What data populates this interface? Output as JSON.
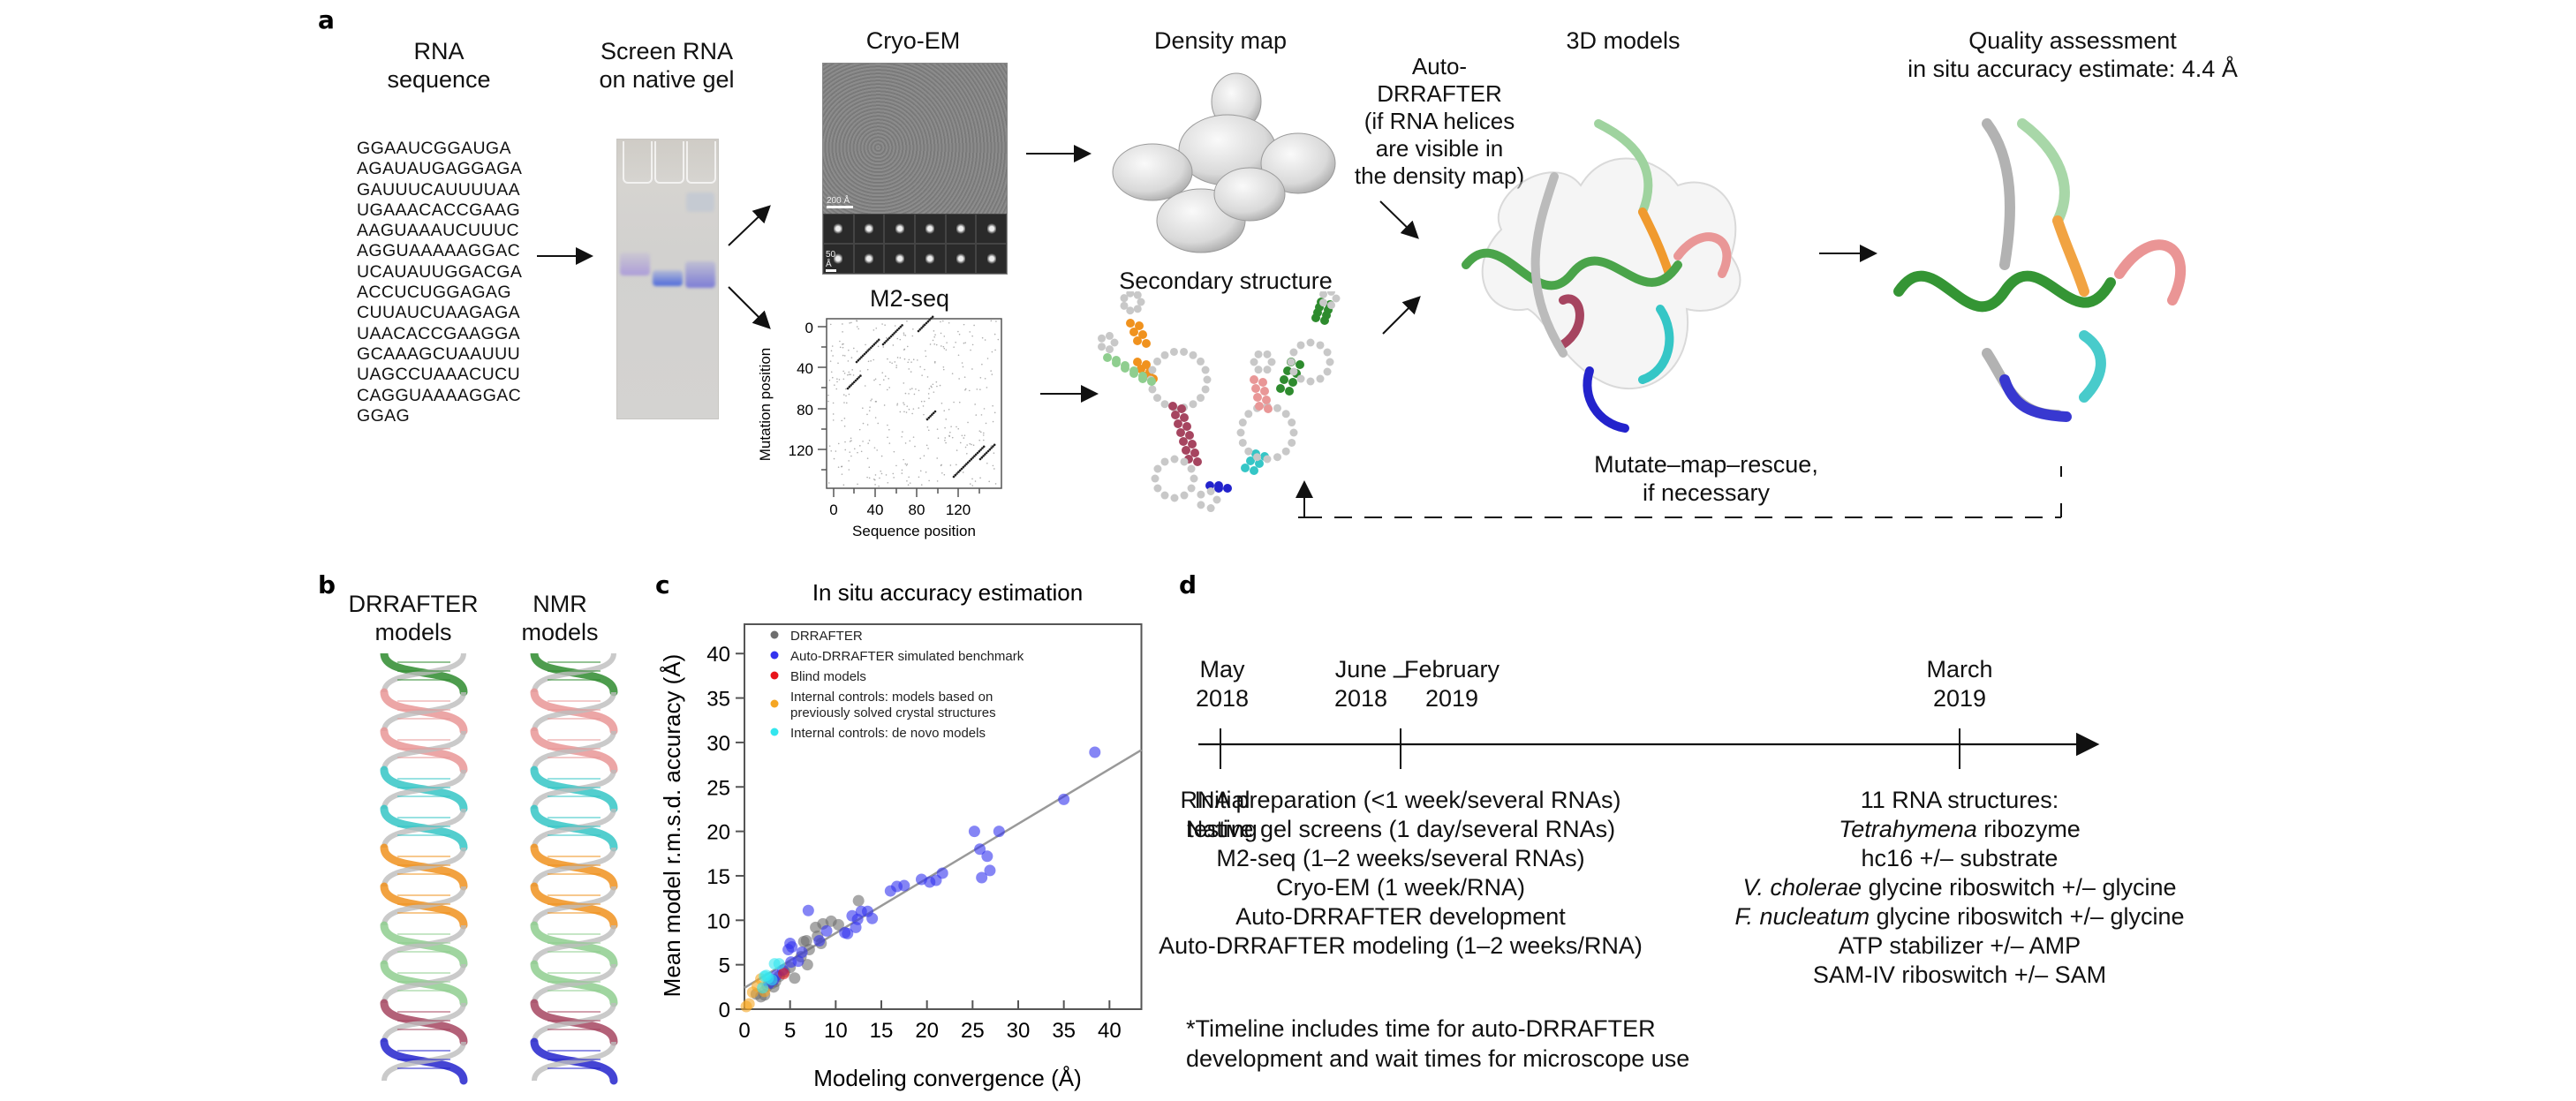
{
  "figure": {
    "panel_labels": {
      "a": "a",
      "b": "b",
      "c": "c",
      "d": "d"
    }
  },
  "panel_a": {
    "rna_sequence": {
      "title": "RNA\nsequence",
      "lines": [
        "GGAAUCGGAUGA",
        "AGAUAUGAGGAGA",
        "GAUUUCAUUUUAA",
        "UGAAACACCGAAG",
        "AAGUAAAUCUUUC",
        "AGGUAAAAAGGAC",
        "UCAUAUUGGACGA",
        "ACCUCUGGAGAG",
        "CUUAUCUAAGAGA",
        "UAACACCGAAGGA",
        "GCAAAGCUAAUUU",
        "UAGCCUAAACUCU",
        "CAGGUAAAAGGAC",
        "GGAG"
      ]
    },
    "native_gel": {
      "title": "Screen RNA\non native gel"
    },
    "cryo_em": {
      "title": "Cryo-EM",
      "scale_bar_micrograph": "200 Å",
      "scale_bar_classes": "50 Å"
    },
    "m2seq": {
      "title": "M2-seq",
      "xlabel": "Sequence position",
      "ylabel": "Mutation position",
      "xticks": [
        "0",
        "40",
        "80",
        "120"
      ],
      "yticks": [
        "0",
        "40",
        "80",
        "120"
      ]
    },
    "density_map": {
      "title": "Density map"
    },
    "secondary_structure": {
      "title": "Secondary structure"
    },
    "auto_drrafter_note": "Auto-\nDRRAFTER\n(if RNA helices\nare visible in\nthe density map)",
    "models_3d": {
      "title": "3D models"
    },
    "quality": {
      "title": "Quality assessment\nin situ accuracy estimate: 4.4 Å"
    },
    "mutate_map_rescue": "Mutate–map–rescue,\nif necessary",
    "helix_colors": {
      "green_dark": "#2e8b2e",
      "green_light": "#8fce8f",
      "orange": "#f0921e",
      "pink": "#e99797",
      "maroon": "#a64560",
      "cyan": "#35c6c6",
      "blue": "#2323cc",
      "gray": "#c8c8c8"
    }
  },
  "panel_b": {
    "drrafter_title": "DRRAFTER\nmodels",
    "nmr_title": "NMR\nmodels"
  },
  "chart_data": {
    "type": "scatter",
    "title": "In situ accuracy estimation",
    "xlabel": "Modeling convergence (Å)",
    "ylabel": "Mean model r.m.s.d. accuracy (Å)",
    "xlim": [
      0,
      43.5
    ],
    "ylim": [
      0,
      43.3
    ],
    "xticks": [
      0,
      5,
      10,
      15,
      20,
      25,
      30,
      35,
      40
    ],
    "yticks": [
      0,
      5,
      10,
      15,
      20,
      25,
      30,
      35,
      40
    ],
    "grid": false,
    "legend_position": "top-left",
    "fit_line": {
      "slope": 0.615,
      "intercept": 2.4,
      "color": "#999999"
    },
    "series": [
      {
        "name": "DRRAFTER",
        "color": "#6e6e6e",
        "points": [
          [
            1.3,
            1.7
          ],
          [
            1.8,
            1.4
          ],
          [
            2.2,
            1.6
          ],
          [
            2.5,
            2.6
          ],
          [
            3.0,
            2.9
          ],
          [
            3.4,
            3.1
          ],
          [
            3.8,
            3.7
          ],
          [
            4.4,
            4.2
          ],
          [
            5.5,
            3.5
          ],
          [
            6.2,
            5.9
          ],
          [
            6.5,
            7.6
          ],
          [
            6.8,
            7.7
          ],
          [
            7.1,
            6.7
          ],
          [
            6.9,
            5.0
          ],
          [
            7.8,
            9.2
          ],
          [
            8.0,
            8.2
          ],
          [
            8.6,
            9.6
          ],
          [
            8.4,
            7.4
          ],
          [
            9.5,
            9.9
          ],
          [
            10.3,
            9.5
          ],
          [
            12.5,
            12.2
          ],
          [
            5.0,
            4.7
          ],
          [
            3.2,
            2.5
          ]
        ]
      },
      {
        "name": "Auto-DRRAFTER simulated benchmark",
        "color": "#3333ee",
        "points": [
          [
            2.7,
            2.9
          ],
          [
            3.2,
            3.3
          ],
          [
            3.5,
            3.8
          ],
          [
            4.2,
            4.4
          ],
          [
            4.8,
            6.7
          ],
          [
            5.0,
            7.4
          ],
          [
            5.2,
            7.0
          ],
          [
            5.1,
            5.3
          ],
          [
            5.9,
            5.4
          ],
          [
            6.3,
            6.4
          ],
          [
            7.0,
            11.1
          ],
          [
            8.2,
            7.7
          ],
          [
            9.0,
            8.8
          ],
          [
            11.0,
            8.6
          ],
          [
            11.3,
            8.5
          ],
          [
            11.8,
            10.5
          ],
          [
            12.2,
            9.2
          ],
          [
            12.4,
            10.1
          ],
          [
            12.8,
            11.0
          ],
          [
            13.5,
            11.0
          ],
          [
            14.0,
            10.2
          ],
          [
            16.0,
            13.3
          ],
          [
            16.7,
            13.8
          ],
          [
            17.5,
            13.9
          ],
          [
            19.4,
            14.6
          ],
          [
            20.3,
            14.3
          ],
          [
            21.0,
            14.5
          ],
          [
            21.7,
            15.3
          ],
          [
            25.2,
            20.0
          ],
          [
            25.8,
            18.0
          ],
          [
            26.0,
            14.8
          ],
          [
            26.6,
            17.2
          ],
          [
            26.9,
            15.6
          ],
          [
            27.9,
            20.0
          ],
          [
            35.0,
            23.6
          ],
          [
            38.4,
            28.9
          ]
        ]
      },
      {
        "name": "Blind models",
        "color": "#e8141a",
        "points": [
          [
            4.3,
            4.0
          ]
        ]
      },
      {
        "name": "Internal controls: models based on previously solved crystal structures",
        "color": "#f5a623",
        "points": [
          [
            0.2,
            0.3
          ],
          [
            0.5,
            0.6
          ],
          [
            0.9,
            1.9
          ],
          [
            1.4,
            2.6
          ],
          [
            2.2,
            2.0
          ],
          [
            1.8,
            3.4
          ]
        ]
      },
      {
        "name": "Internal controls: de novo models",
        "color": "#33e6ee",
        "points": [
          [
            2.0,
            2.4
          ],
          [
            2.2,
            3.7
          ],
          [
            2.6,
            3.5
          ],
          [
            3.0,
            3.3
          ],
          [
            3.3,
            5.1
          ],
          [
            3.8,
            5.1
          ],
          [
            2.4,
            3.8
          ]
        ]
      }
    ]
  },
  "panel_d": {
    "dates": [
      {
        "month": "May",
        "year": "2018"
      },
      {
        "month": "June",
        "year": "2018"
      },
      {
        "month": "February",
        "year": "2019"
      },
      {
        "month": "March",
        "year": "2019"
      }
    ],
    "range_dash": "–",
    "initial": [
      "Initial",
      "testing"
    ],
    "middle": [
      "RNA preparation (<1 week/several RNAs)",
      "Native gel screens (1 day/several RNAs)",
      "M2-seq (1–2 weeks/several RNAs)",
      "Cryo-EM (1 week/RNA)",
      "Auto-DRRAFTER development",
      "Auto-DRRAFTER modeling (1–2 weeks/RNA)"
    ],
    "results": {
      "heading": "11 RNA structures:",
      "items": [
        {
          "italic": "Tetrahymena",
          "rest": " ribozyme"
        },
        {
          "italic": "",
          "rest": "hc16 +/– substrate"
        },
        {
          "italic": "V. cholerae",
          "rest": " glycine riboswitch +/– glycine"
        },
        {
          "italic": "F. nucleatum",
          "rest": " glycine riboswitch +/– glycine"
        },
        {
          "italic": "",
          "rest": "ATP stabilizer +/– AMP"
        },
        {
          "italic": "",
          "rest": "SAM-IV riboswitch +/– SAM"
        }
      ]
    },
    "footnote": [
      "*Timeline includes time for auto-DRRAFTER",
      "development and wait times for microscope use"
    ]
  }
}
